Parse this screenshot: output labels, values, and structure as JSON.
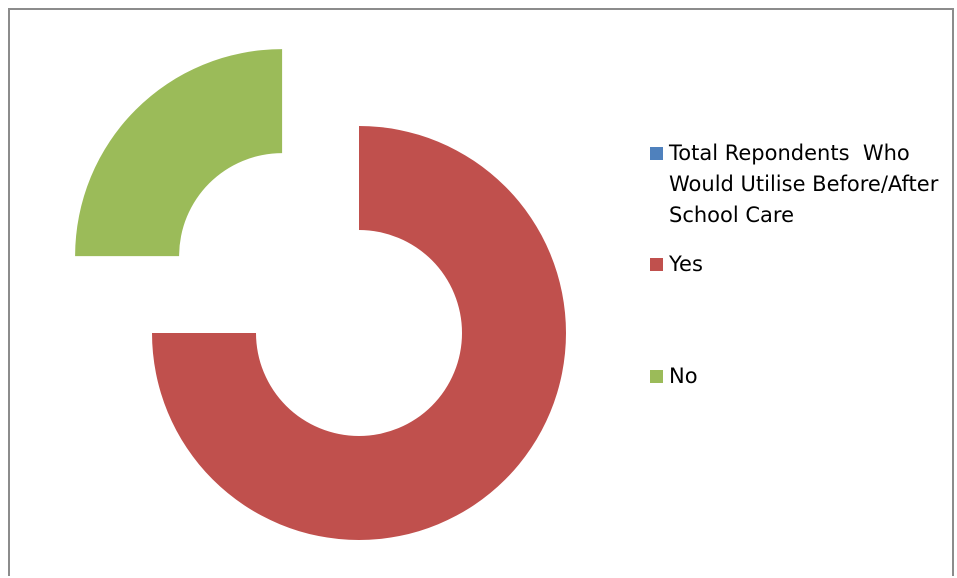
{
  "chart_data": {
    "type": "pie",
    "variant": "exploded-donut",
    "series": [
      {
        "name": "Total Repondents  Who Would Utilise Before/After School Care",
        "values": [],
        "color": "#4F81BD"
      },
      {
        "name": "Yes",
        "values": [
          75
        ],
        "color": "#C0504D"
      },
      {
        "name": "No",
        "values": [
          25
        ],
        "color": "#9BBB59"
      }
    ],
    "legend": "right",
    "legend_entries": [
      {
        "label": "Total Repondents  Who Would Utilise Before/After School Care",
        "color": "#4F81BD"
      },
      {
        "label": "Yes",
        "color": "#C0504D"
      },
      {
        "label": "No",
        "color": "#9BBB59"
      }
    ]
  }
}
